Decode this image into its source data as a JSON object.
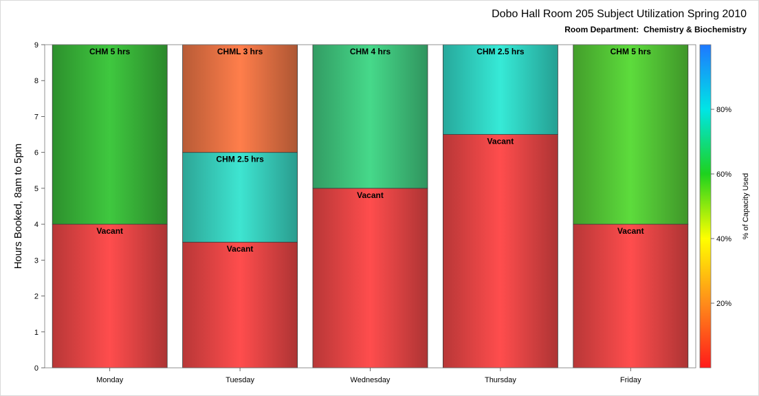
{
  "title": "Dobo Hall Room 205 Subject Utilization Spring 2010",
  "subtitle": "Room Department:  Chemistry & Biochemistry",
  "chart_data": {
    "type": "bar",
    "stacked": true,
    "categories": [
      "Monday",
      "Tuesday",
      "Wednesday",
      "Thursday",
      "Friday"
    ],
    "ylabel": "Hours Booked, 8am to 5pm",
    "ylim": [
      0,
      9
    ],
    "yticks": [
      0,
      1,
      2,
      3,
      4,
      5,
      6,
      7,
      8,
      9
    ],
    "bars": [
      {
        "category": "Monday",
        "segments": [
          {
            "label": "Vacant",
            "value": 4,
            "color": "#ff4d4d"
          },
          {
            "label": "CHM 5 hrs",
            "value": 5,
            "color": "#3fc83f"
          }
        ]
      },
      {
        "category": "Tuesday",
        "segments": [
          {
            "label": "Vacant",
            "value": 3.5,
            "color": "#ff4d4d"
          },
          {
            "label": "CHM 2.5 hrs",
            "value": 2.5,
            "color": "#3ee5d1"
          },
          {
            "label": "CHML 3 hrs",
            "value": 3,
            "color": "#ff7e4b"
          }
        ]
      },
      {
        "category": "Wednesday",
        "segments": [
          {
            "label": "Vacant",
            "value": 5,
            "color": "#ff4d4d"
          },
          {
            "label": "CHM 4 hrs",
            "value": 4,
            "color": "#46d98a"
          }
        ]
      },
      {
        "category": "Thursday",
        "segments": [
          {
            "label": "Vacant",
            "value": 6.5,
            "color": "#ff4d4d"
          },
          {
            "label": "CHM 2.5 hrs",
            "value": 2.5,
            "color": "#36ead7"
          }
        ]
      },
      {
        "category": "Friday",
        "segments": [
          {
            "label": "Vacant",
            "value": 4,
            "color": "#ff4d4d"
          },
          {
            "label": "CHM 5 hrs",
            "value": 5,
            "color": "#5ddc3c"
          }
        ]
      }
    ],
    "colorbar": {
      "label": "% of Capacity Used",
      "ticks": [
        "20%",
        "40%",
        "60%",
        "80%"
      ],
      "tick_values": [
        20,
        40,
        60,
        80
      ],
      "range": [
        0,
        100
      ],
      "stops": [
        "#ff1a1a",
        "#ff8c1a",
        "#ffff00",
        "#1ed21e",
        "#00e5e5",
        "#1e78ff"
      ]
    }
  }
}
